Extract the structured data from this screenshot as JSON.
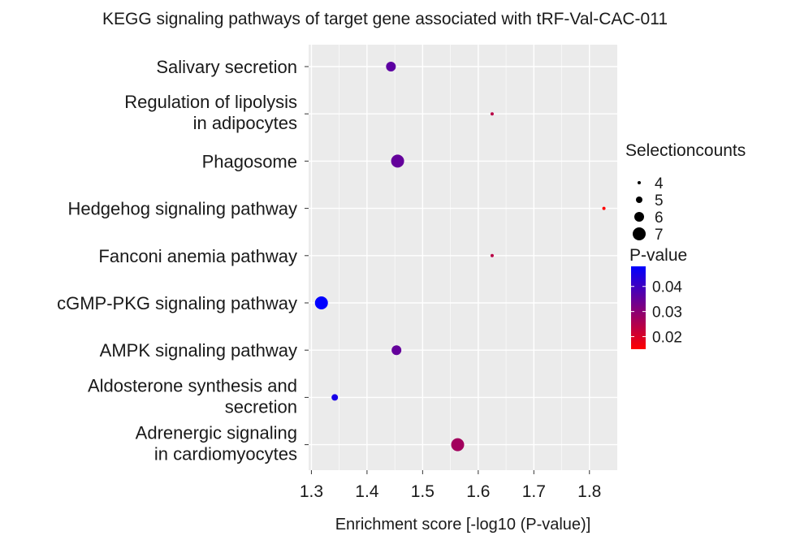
{
  "chart_data": {
    "type": "scatter",
    "title": "KEGG signaling pathways of target gene associated with tRF-Val-CAC-011",
    "xlabel": "Enrichment score [-log10 (P-value)]",
    "ylabel": "",
    "xlim": [
      1.295,
      1.85
    ],
    "x_ticks": [
      {
        "value": 1.3,
        "label": "1.3"
      },
      {
        "value": 1.4,
        "label": "1.4"
      },
      {
        "value": 1.5,
        "label": "1.5"
      },
      {
        "value": 1.6,
        "label": "1.6"
      },
      {
        "value": 1.7,
        "label": "1.7"
      },
      {
        "value": 1.8,
        "label": "1.8"
      }
    ],
    "grid": true,
    "background": "#ebebeb",
    "categories": [
      {
        "lines": [
          "Salivary secretion"
        ]
      },
      {
        "lines": [
          "Regulation of lipolysis",
          "in adipocytes"
        ]
      },
      {
        "lines": [
          "Phagosome"
        ]
      },
      {
        "lines": [
          "Hedgehog signaling pathway"
        ]
      },
      {
        "lines": [
          "Fanconi anemia pathway"
        ]
      },
      {
        "lines": [
          "cGMP-PKG signaling pathway"
        ]
      },
      {
        "lines": [
          "AMPK signaling pathway"
        ]
      },
      {
        "lines": [
          "Aldosterone synthesis and",
          "secretion"
        ]
      },
      {
        "lines": [
          "Adrenergic signaling",
          "in cardiomyocytes"
        ]
      }
    ],
    "points": [
      {
        "category": 0,
        "x": 1.443,
        "count": 6,
        "pvalue": 0.036
      },
      {
        "category": 1,
        "x": 1.625,
        "count": 4,
        "pvalue": 0.024
      },
      {
        "category": 2,
        "x": 1.455,
        "count": 7,
        "pvalue": 0.035
      },
      {
        "category": 3,
        "x": 1.826,
        "count": 4,
        "pvalue": 0.015
      },
      {
        "category": 4,
        "x": 1.625,
        "count": 4,
        "pvalue": 0.024
      },
      {
        "category": 5,
        "x": 1.318,
        "count": 7,
        "pvalue": 0.048
      },
      {
        "category": 6,
        "x": 1.453,
        "count": 6,
        "pvalue": 0.035
      },
      {
        "category": 7,
        "x": 1.342,
        "count": 5,
        "pvalue": 0.045
      },
      {
        "category": 8,
        "x": 1.563,
        "count": 7,
        "pvalue": 0.027
      }
    ],
    "legend_size": {
      "title": "Selectioncounts",
      "items": [
        {
          "value": 4,
          "label": "4"
        },
        {
          "value": 5,
          "label": "5"
        },
        {
          "value": 6,
          "label": "6"
        },
        {
          "value": 7,
          "label": "7"
        }
      ]
    },
    "legend_color": {
      "title": "P-value",
      "range": [
        0.015,
        0.048
      ],
      "low_color": "#ff0000",
      "high_color": "#0000ff",
      "ticks": [
        {
          "value": 0.04,
          "label": "0.04"
        },
        {
          "value": 0.03,
          "label": "0.03"
        },
        {
          "value": 0.02,
          "label": "0.02"
        }
      ]
    },
    "legend_position": "right"
  }
}
